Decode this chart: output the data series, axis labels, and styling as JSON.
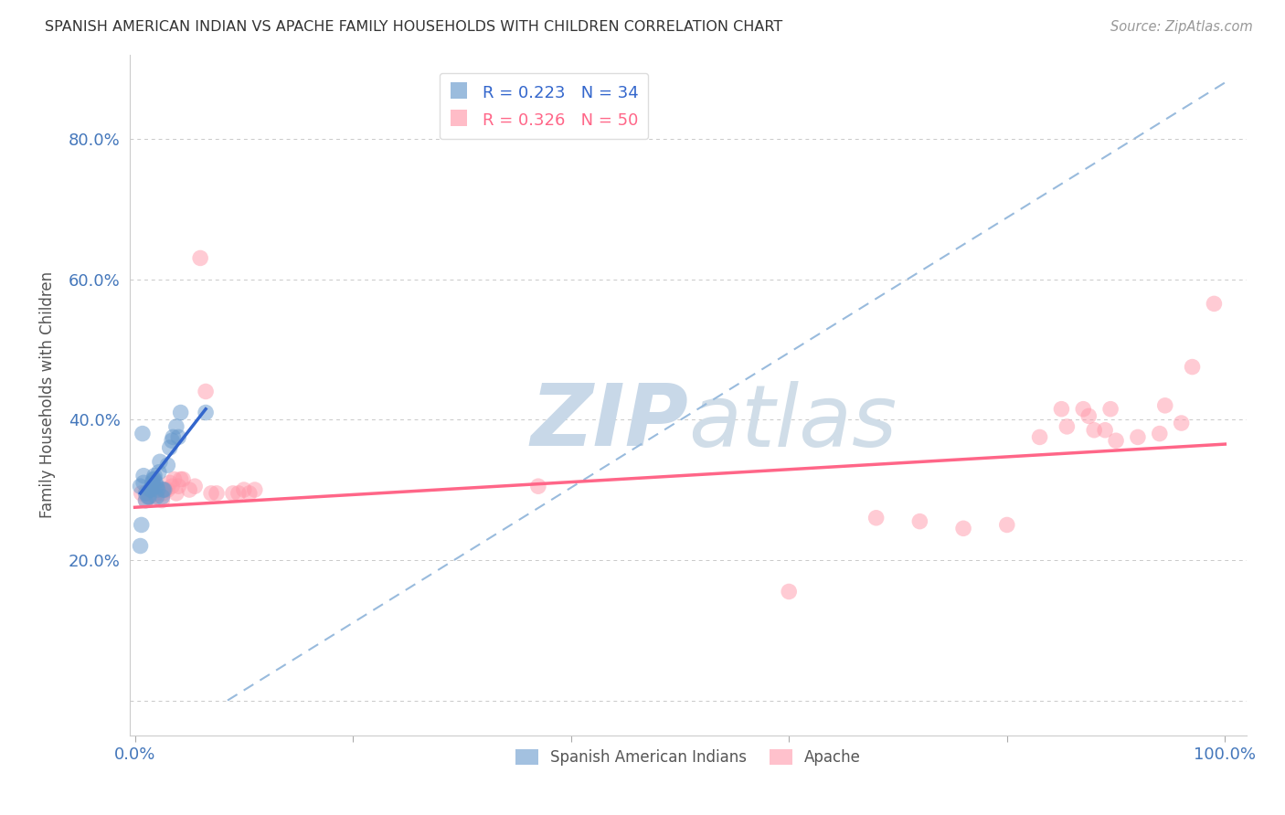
{
  "title": "SPANISH AMERICAN INDIAN VS APACHE FAMILY HOUSEHOLDS WITH CHILDREN CORRELATION CHART",
  "source": "Source: ZipAtlas.com",
  "ylabel": "Family Households with Children",
  "xlim": [
    -0.005,
    1.02
  ],
  "ylim": [
    -0.05,
    0.92
  ],
  "yticks": [
    0.0,
    0.2,
    0.4,
    0.6,
    0.8
  ],
  "ytick_labels": [
    "",
    "20.0%",
    "40.0%",
    "60.0%",
    "80.0%"
  ],
  "xticks": [
    0.0,
    0.2,
    0.4,
    0.6,
    0.8,
    1.0
  ],
  "xtick_labels": [
    "0.0%",
    "",
    "",
    "",
    "",
    "100.0%"
  ],
  "blue_color": "#6699cc",
  "pink_color": "#ff99aa",
  "blue_line_color": "#3366cc",
  "pink_line_color": "#ff6688",
  "dashed_line_color": "#99bbdd",
  "watermark_color": "#c8d8e8",
  "title_color": "#333333",
  "axis_tick_color": "#4477bb",
  "grid_color": "#bbbbbb",
  "blue_scatter_x": [
    0.005,
    0.008,
    0.008,
    0.01,
    0.01,
    0.012,
    0.013,
    0.014,
    0.015,
    0.016,
    0.016,
    0.017,
    0.018,
    0.018,
    0.019,
    0.02,
    0.02,
    0.021,
    0.022,
    0.023,
    0.025,
    0.026,
    0.027,
    0.03,
    0.032,
    0.034,
    0.035,
    0.038,
    0.04,
    0.042,
    0.005,
    0.006,
    0.007,
    0.065
  ],
  "blue_scatter_y": [
    0.305,
    0.31,
    0.32,
    0.285,
    0.295,
    0.29,
    0.29,
    0.3,
    0.3,
    0.305,
    0.31,
    0.315,
    0.32,
    0.315,
    0.31,
    0.305,
    0.29,
    0.3,
    0.325,
    0.34,
    0.29,
    0.3,
    0.3,
    0.335,
    0.36,
    0.37,
    0.375,
    0.39,
    0.375,
    0.41,
    0.22,
    0.25,
    0.38,
    0.41
  ],
  "pink_scatter_x": [
    0.006,
    0.01,
    0.013,
    0.014,
    0.018,
    0.02,
    0.022,
    0.025,
    0.026,
    0.028,
    0.03,
    0.032,
    0.034,
    0.036,
    0.038,
    0.04,
    0.042,
    0.044,
    0.05,
    0.055,
    0.06,
    0.065,
    0.07,
    0.075,
    0.09,
    0.095,
    0.1,
    0.105,
    0.11,
    0.37,
    0.6,
    0.68,
    0.72,
    0.76,
    0.8,
    0.83,
    0.85,
    0.855,
    0.87,
    0.875,
    0.88,
    0.89,
    0.895,
    0.9,
    0.92,
    0.94,
    0.945,
    0.96,
    0.97,
    0.99
  ],
  "pink_scatter_y": [
    0.295,
    0.285,
    0.29,
    0.3,
    0.29,
    0.295,
    0.3,
    0.285,
    0.295,
    0.3,
    0.3,
    0.31,
    0.305,
    0.315,
    0.295,
    0.305,
    0.315,
    0.315,
    0.3,
    0.305,
    0.63,
    0.44,
    0.295,
    0.295,
    0.295,
    0.295,
    0.3,
    0.295,
    0.3,
    0.305,
    0.155,
    0.26,
    0.255,
    0.245,
    0.25,
    0.375,
    0.415,
    0.39,
    0.415,
    0.405,
    0.385,
    0.385,
    0.415,
    0.37,
    0.375,
    0.38,
    0.42,
    0.395,
    0.475,
    0.565
  ],
  "blue_line_x": [
    0.005,
    0.065
  ],
  "blue_line_y": [
    0.295,
    0.415
  ],
  "pink_line_x": [
    0.0,
    1.0
  ],
  "pink_line_y": [
    0.275,
    0.365
  ],
  "dashed_line_x": [
    0.085,
    1.0
  ],
  "dashed_line_y": [
    0.0,
    0.88
  ]
}
